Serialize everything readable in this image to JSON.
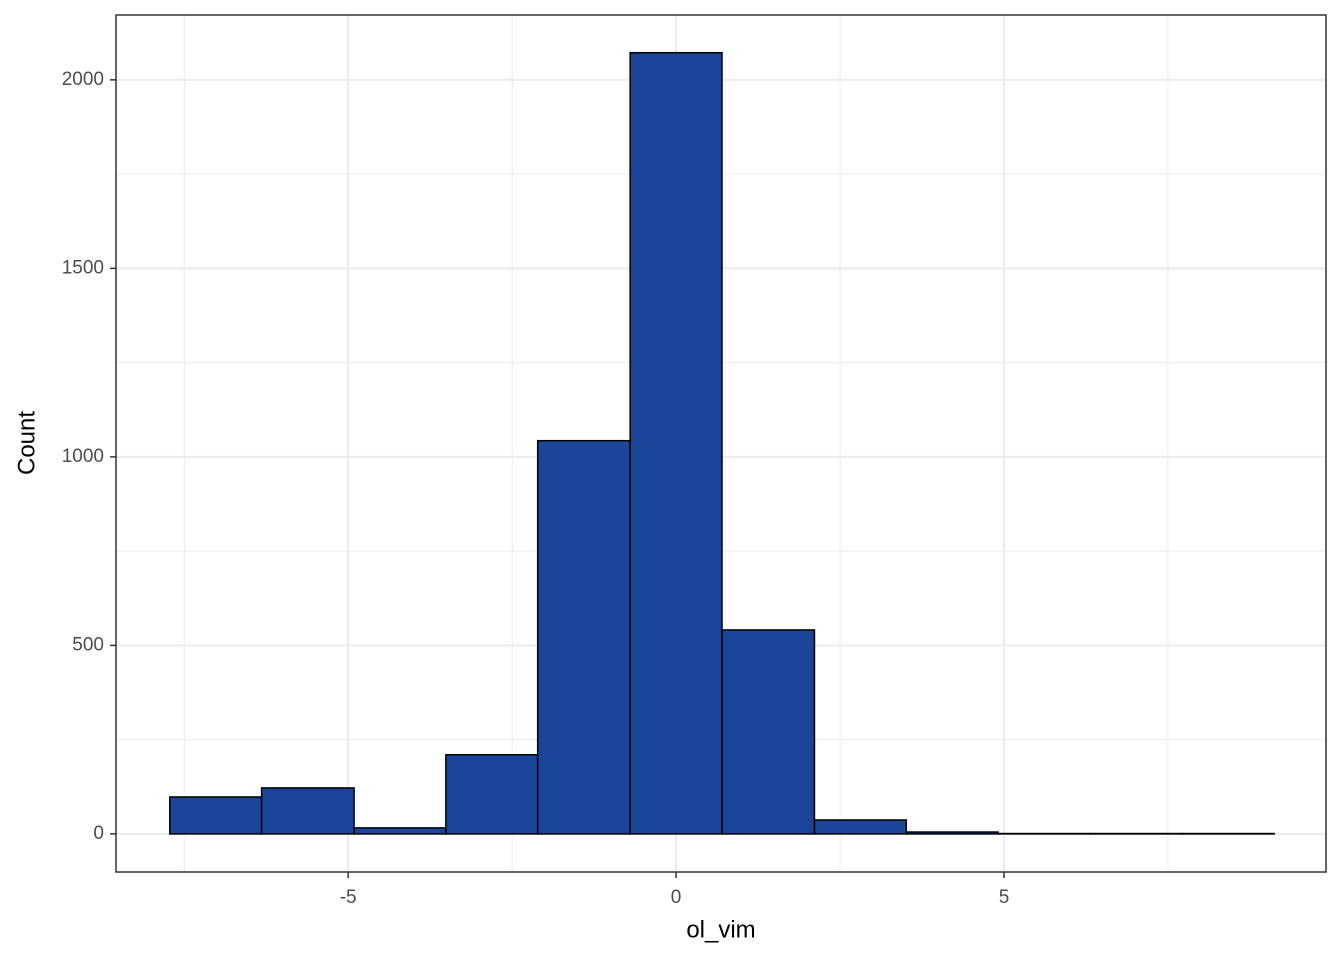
{
  "chart_data": {
    "type": "histogram",
    "x_label": "ol_vim",
    "y_label": "Count",
    "bins": [
      -7.72,
      -6.32,
      -4.91,
      -3.51,
      -2.11,
      -0.7,
      0.7,
      2.11,
      3.51,
      4.91,
      6.32,
      7.72,
      9.12
    ],
    "values": [
      98,
      122,
      16,
      210,
      1043,
      2072,
      541,
      37,
      5,
      1,
      1,
      1
    ],
    "color": "#1a4599",
    "edge_color": "#000000",
    "xlim": [
      -8.54,
      9.91
    ],
    "ylim": [
      -101,
      2172
    ],
    "xticks": [
      -5,
      0,
      5
    ],
    "yticks": [
      0,
      500,
      1000,
      1500,
      2000
    ],
    "xminor": [
      -7.5,
      -2.5,
      2.5,
      7.5
    ],
    "yminor": [
      250,
      750,
      1250,
      1750
    ],
    "grid": true
  }
}
